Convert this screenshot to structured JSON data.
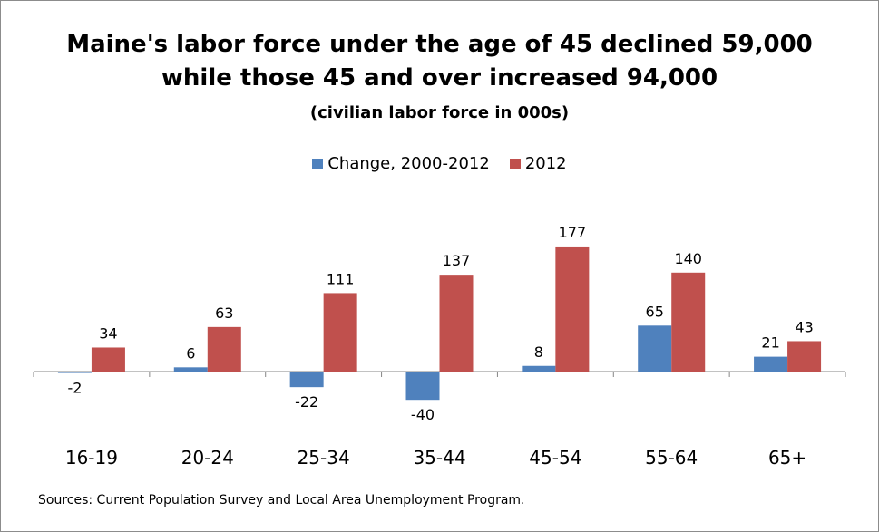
{
  "chart_data": {
    "type": "bar",
    "title": "Maine's labor force under the age of 45 declined 59,000",
    "title_line2": "while those 45 and over increased 94,000",
    "subtitle": "(civilian labor force in 000s)",
    "categories": [
      "16-19",
      "20-24",
      "25-34",
      "35-44",
      "45-54",
      "55-64",
      "65+"
    ],
    "series": [
      {
        "name": "Change, 2000-2012",
        "color": "#4f81bd",
        "values": [
          -2,
          6,
          -22,
          -40,
          8,
          65,
          21
        ]
      },
      {
        "name": "2012",
        "color": "#c0504d",
        "values": [
          34,
          63,
          111,
          137,
          177,
          140,
          43
        ]
      }
    ],
    "legend_position": "top",
    "grid": false,
    "data_labels": true
  },
  "source": "Sources: Current Population Survey and Local Area Unemployment Program."
}
